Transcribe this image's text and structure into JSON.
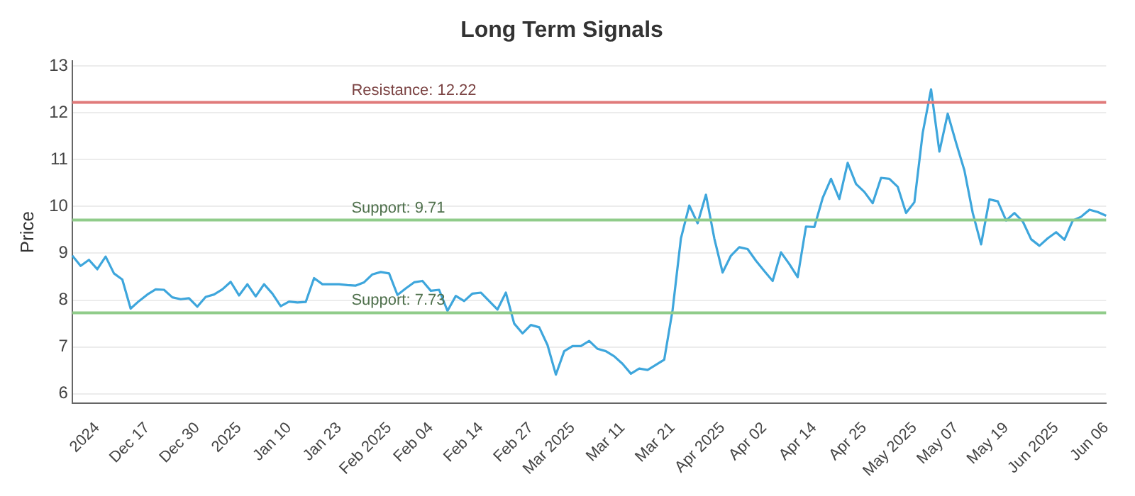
{
  "chart_data": {
    "type": "line",
    "title": "Long Term Signals",
    "ylabel": "Price",
    "categories": [
      null,
      null,
      null,
      "2024",
      null,
      null,
      null,
      null,
      null,
      "Dec 17",
      null,
      null,
      null,
      null,
      null,
      "Dec 30",
      null,
      null,
      null,
      null,
      "2025",
      null,
      null,
      null,
      null,
      null,
      "Jan 10",
      null,
      null,
      null,
      null,
      null,
      "Jan 23",
      null,
      null,
      null,
      null,
      null,
      "Feb 2025",
      null,
      null,
      null,
      null,
      "Feb 04",
      null,
      null,
      null,
      null,
      null,
      "Feb 14",
      null,
      null,
      null,
      null,
      null,
      "Feb 27",
      null,
      null,
      null,
      null,
      "Mar 2025",
      null,
      null,
      null,
      null,
      null,
      "Mar 11",
      null,
      null,
      null,
      null,
      null,
      "Mar 21",
      null,
      null,
      null,
      null,
      null,
      "Apr 2025",
      null,
      null,
      null,
      null,
      "Apr 02",
      null,
      null,
      null,
      null,
      null,
      "Apr 14",
      null,
      null,
      null,
      null,
      null,
      "Apr 25",
      null,
      null,
      null,
      null,
      null,
      "May 2025",
      null,
      null,
      null,
      null,
      "May 07",
      null,
      null,
      null,
      null,
      null,
      "May 19",
      null,
      null,
      null,
      null,
      null,
      "Jun 2025",
      null,
      null,
      null,
      null,
      null,
      "Jun 06"
    ],
    "ylim": [
      5.8,
      13.1
    ],
    "yticks": [
      6,
      7,
      8,
      9,
      10,
      11,
      12,
      13
    ],
    "grid": "y",
    "legend": false,
    "marker": "none",
    "line_style": "solid",
    "series": [
      {
        "color": "#3ea6dc",
        "values": [
          8.95,
          8.73,
          8.86,
          8.66,
          8.93,
          8.57,
          8.44,
          7.82,
          7.98,
          8.12,
          8.23,
          8.22,
          8.06,
          8.02,
          8.04,
          7.86,
          8.07,
          8.12,
          8.23,
          8.39,
          8.1,
          8.34,
          8.08,
          8.34,
          8.14,
          7.87,
          7.97,
          7.95,
          7.96,
          8.47,
          8.34,
          8.34,
          8.34,
          8.32,
          8.31,
          8.38,
          8.55,
          8.6,
          8.57,
          8.11,
          8.25,
          8.38,
          8.41,
          8.2,
          8.22,
          7.77,
          8.09,
          7.98,
          8.14,
          8.16,
          7.98,
          7.8,
          8.16,
          7.5,
          7.29,
          7.47,
          7.42,
          7.04,
          6.41,
          6.91,
          7.02,
          7.02,
          7.13,
          6.96,
          6.91,
          6.8,
          6.64,
          6.43,
          6.54,
          6.51,
          6.62,
          6.73,
          7.79,
          9.32,
          10.02,
          9.64,
          10.25,
          9.32,
          8.59,
          8.95,
          9.13,
          9.09,
          8.84,
          8.62,
          8.41,
          9.02,
          8.77,
          8.49,
          9.57,
          9.56,
          10.18,
          10.59,
          10.16,
          10.93,
          10.48,
          10.31,
          10.07,
          10.61,
          10.59,
          10.42,
          9.86,
          10.09,
          11.57,
          12.5,
          11.17,
          11.98,
          11.36,
          10.77,
          9.86,
          9.19,
          10.15,
          10.11,
          9.7,
          9.86,
          9.68,
          9.3,
          9.16,
          9.32,
          9.45,
          9.29,
          9.7,
          9.78,
          9.93,
          9.88,
          9.8
        ]
      }
    ],
    "ref_lines": [
      {
        "axis": "y",
        "value": 12.22,
        "label": "Resistance: 12.22",
        "color": "#e07a7a"
      },
      {
        "axis": "y",
        "value": 9.71,
        "label": "Support: 9.71",
        "color": "#90cc8a"
      },
      {
        "axis": "y",
        "value": 7.73,
        "label": "Support: 7.73",
        "color": "#90cc8a"
      }
    ]
  }
}
